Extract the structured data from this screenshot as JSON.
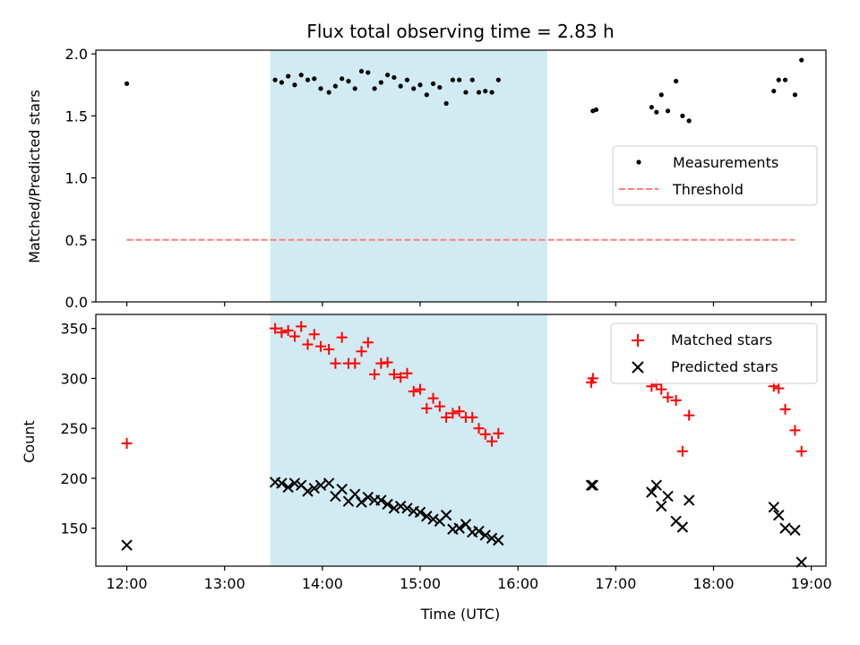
{
  "chart_data": [
    {
      "type": "scatter",
      "title": "Flux total observing time = 2.83 h",
      "ylabel": "Matched/Predicted stars",
      "xlabel": "",
      "xlim": [
        "11:41",
        "19:09"
      ],
      "ylim": [
        0,
        2.03
      ],
      "x_ticks": [
        "12:00",
        "13:00",
        "14:00",
        "15:00",
        "16:00",
        "17:00",
        "18:00",
        "19:00"
      ],
      "y_ticks": [
        "0.0",
        "0.5",
        "1.0",
        "1.5",
        "2.0"
      ],
      "grid": false,
      "legend": {
        "placement": "center-right",
        "entries": [
          "Measurements",
          "Threshold"
        ]
      },
      "shaded_span": {
        "start": "13:28",
        "end": "16:18",
        "color": "#add8e6"
      },
      "threshold": {
        "name": "Threshold",
        "value": 0.5,
        "x_start": "12:00",
        "x_end": "18:50",
        "color": "#ff7f7f",
        "style": "dashed"
      },
      "series": [
        {
          "name": "Measurements",
          "marker": "dot",
          "color": "#000000",
          "points": [
            [
              "12:00",
              1.76
            ],
            [
              "13:31",
              1.79
            ],
            [
              "13:35",
              1.77
            ],
            [
              "13:39",
              1.82
            ],
            [
              "13:43",
              1.75
            ],
            [
              "13:47",
              1.83
            ],
            [
              "13:51",
              1.79
            ],
            [
              "13:55",
              1.8
            ],
            [
              "13:59",
              1.72
            ],
            [
              "14:04",
              1.69
            ],
            [
              "14:08",
              1.74
            ],
            [
              "14:12",
              1.8
            ],
            [
              "14:16",
              1.78
            ],
            [
              "14:20",
              1.72
            ],
            [
              "14:24",
              1.86
            ],
            [
              "14:28",
              1.85
            ],
            [
              "14:32",
              1.72
            ],
            [
              "14:36",
              1.77
            ],
            [
              "14:40",
              1.83
            ],
            [
              "14:44",
              1.81
            ],
            [
              "14:48",
              1.74
            ],
            [
              "14:52",
              1.79
            ],
            [
              "14:56",
              1.72
            ],
            [
              "15:00",
              1.75
            ],
            [
              "15:04",
              1.67
            ],
            [
              "15:08",
              1.76
            ],
            [
              "15:12",
              1.73
            ],
            [
              "15:16",
              1.6
            ],
            [
              "15:20",
              1.79
            ],
            [
              "15:24",
              1.79
            ],
            [
              "15:28",
              1.69
            ],
            [
              "15:32",
              1.79
            ],
            [
              "15:36",
              1.69
            ],
            [
              "15:40",
              1.7
            ],
            [
              "15:44",
              1.69
            ],
            [
              "15:48",
              1.79
            ],
            [
              "16:46",
              1.54
            ],
            [
              "16:48",
              1.55
            ],
            [
              "17:22",
              1.57
            ],
            [
              "17:25",
              1.53
            ],
            [
              "17:28",
              1.67
            ],
            [
              "17:32",
              1.54
            ],
            [
              "17:37",
              1.78
            ],
            [
              "17:41",
              1.5
            ],
            [
              "17:45",
              1.46
            ],
            [
              "18:37",
              1.7
            ],
            [
              "18:40",
              1.79
            ],
            [
              "18:44",
              1.79
            ],
            [
              "18:50",
              1.67
            ],
            [
              "18:54",
              1.95
            ]
          ]
        }
      ]
    },
    {
      "type": "scatter",
      "title": "",
      "xlabel": "Time (UTC)",
      "ylabel": "Count",
      "xlim": [
        "11:41",
        "19:09"
      ],
      "ylim": [
        112,
        364
      ],
      "x_ticks": [
        "12:00",
        "13:00",
        "14:00",
        "15:00",
        "16:00",
        "17:00",
        "18:00",
        "19:00"
      ],
      "y_ticks": [
        "150",
        "200",
        "250",
        "300",
        "350"
      ],
      "grid": false,
      "legend": {
        "placement": "top-right",
        "entries": [
          "Matched stars",
          "Predicted stars"
        ]
      },
      "shaded_span": {
        "start": "13:28",
        "end": "16:18",
        "color": "#add8e6"
      },
      "series": [
        {
          "name": "Matched stars",
          "marker": "plus",
          "color": "#ff0000",
          "points": [
            [
              "12:00",
              235
            ],
            [
              "13:31",
              350
            ],
            [
              "13:35",
              346
            ],
            [
              "13:39",
              348
            ],
            [
              "13:43",
              342
            ],
            [
              "13:47",
              352
            ],
            [
              "13:51",
              334
            ],
            [
              "13:55",
              344
            ],
            [
              "13:59",
              332
            ],
            [
              "14:04",
              329
            ],
            [
              "14:08",
              315
            ],
            [
              "14:12",
              341
            ],
            [
              "14:16",
              315
            ],
            [
              "14:20",
              315
            ],
            [
              "14:24",
              327
            ],
            [
              "14:28",
              336
            ],
            [
              "14:32",
              304
            ],
            [
              "14:36",
              315
            ],
            [
              "14:40",
              316
            ],
            [
              "14:44",
              304
            ],
            [
              "14:48",
              301
            ],
            [
              "14:52",
              305
            ],
            [
              "14:56",
              287
            ],
            [
              "15:00",
              289
            ],
            [
              "15:04",
              270
            ],
            [
              "15:08",
              280
            ],
            [
              "15:12",
              272
            ],
            [
              "15:16",
              261
            ],
            [
              "15:20",
              265
            ],
            [
              "15:24",
              267
            ],
            [
              "15:28",
              261
            ],
            [
              "15:32",
              261
            ],
            [
              "15:36",
              250
            ],
            [
              "15:40",
              244
            ],
            [
              "15:44",
              237
            ],
            [
              "15:48",
              245
            ],
            [
              "16:45",
              296
            ],
            [
              "16:46",
              300
            ],
            [
              "17:22",
              292
            ],
            [
              "17:25",
              294
            ],
            [
              "17:28",
              289
            ],
            [
              "17:32",
              281
            ],
            [
              "17:37",
              278
            ],
            [
              "17:41",
              227
            ],
            [
              "17:45",
              263
            ],
            [
              "18:37",
              292
            ],
            [
              "18:40",
              290
            ],
            [
              "18:44",
              269
            ],
            [
              "18:50",
              248
            ],
            [
              "18:54",
              227
            ]
          ]
        },
        {
          "name": "Predicted stars",
          "marker": "x",
          "color": "#000000",
          "points": [
            [
              "12:00",
              133
            ],
            [
              "13:31",
              196
            ],
            [
              "13:35",
              195
            ],
            [
              "13:39",
              191
            ],
            [
              "13:43",
              195
            ],
            [
              "13:47",
              193
            ],
            [
              "13:51",
              187
            ],
            [
              "13:55",
              190
            ],
            [
              "13:59",
              193
            ],
            [
              "14:04",
              195
            ],
            [
              "14:08",
              182
            ],
            [
              "14:12",
              189
            ],
            [
              "14:16",
              177
            ],
            [
              "14:20",
              184
            ],
            [
              "14:24",
              176
            ],
            [
              "14:28",
              181
            ],
            [
              "14:32",
              178
            ],
            [
              "14:36",
              178
            ],
            [
              "14:40",
              174
            ],
            [
              "14:44",
              170
            ],
            [
              "14:48",
              172
            ],
            [
              "14:52",
              170
            ],
            [
              "14:56",
              167
            ],
            [
              "15:00",
              166
            ],
            [
              "15:04",
              162
            ],
            [
              "15:08",
              159
            ],
            [
              "15:12",
              157
            ],
            [
              "15:16",
              163
            ],
            [
              "15:20",
              149
            ],
            [
              "15:24",
              150
            ],
            [
              "15:28",
              154
            ],
            [
              "15:32",
              146
            ],
            [
              "15:36",
              147
            ],
            [
              "15:40",
              143
            ],
            [
              "15:44",
              140
            ],
            [
              "15:48",
              138
            ],
            [
              "16:45",
              193
            ],
            [
              "16:46",
              193
            ],
            [
              "17:22",
              186
            ],
            [
              "17:25",
              193
            ],
            [
              "17:28",
              172
            ],
            [
              "17:32",
              182
            ],
            [
              "17:37",
              157
            ],
            [
              "17:41",
              151
            ],
            [
              "17:45",
              178
            ],
            [
              "18:37",
              171
            ],
            [
              "18:40",
              163
            ],
            [
              "18:44",
              150
            ],
            [
              "18:50",
              148
            ],
            [
              "18:54",
              116
            ]
          ]
        }
      ]
    }
  ]
}
